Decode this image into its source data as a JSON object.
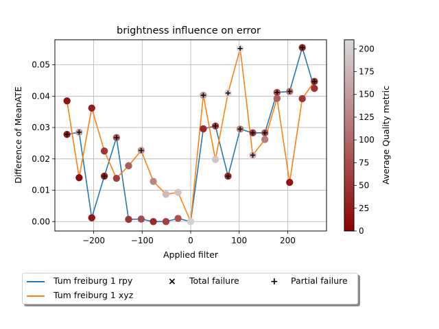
{
  "chart_data": {
    "type": "line",
    "title": "brightness influence on error",
    "xlabel": "Applied filter",
    "ylabel": "Difference of MeanATE",
    "xlim": [
      -280,
      280
    ],
    "ylim": [
      -0.003,
      0.058
    ],
    "x_ticks": [
      -200,
      -100,
      0,
      100,
      200
    ],
    "x_tick_labels": [
      "−200",
      "−100",
      "0",
      "100",
      "200"
    ],
    "y_ticks": [
      0.0,
      0.01,
      0.02,
      0.03,
      0.04,
      0.05
    ],
    "y_tick_labels": [
      "0.00",
      "0.01",
      "0.02",
      "0.03",
      "0.04",
      "0.05"
    ],
    "grid": true,
    "legend_position": "below",
    "series": [
      {
        "name": "Tum freiburg 1 rpy",
        "color": "#1f77b4",
        "x": [
          -255,
          -230,
          -204,
          -178,
          -153,
          -128,
          -102,
          -77,
          -51,
          -26,
          0,
          26,
          51,
          77,
          102,
          128,
          153,
          178,
          204,
          230,
          255
        ],
        "y": [
          0.0278,
          0.0285,
          0.0012,
          0.0145,
          0.0268,
          0.0007,
          0.0008,
          0.0,
          0.0,
          0.001,
          0.0,
          0.0296,
          0.0305,
          0.0145,
          0.0295,
          0.0283,
          0.0283,
          0.0412,
          0.0415,
          0.0555,
          0.0425
        ],
        "quality": [
          30,
          150,
          20,
          30,
          90,
          50,
          70,
          40,
          60,
          80,
          200,
          40,
          60,
          40,
          120,
          60,
          80,
          80,
          110,
          40,
          50
        ]
      },
      {
        "name": "Tum freiburg 1 xyz",
        "color": "#ff7f0e",
        "x": [
          -255,
          -230,
          -204,
          -178,
          -153,
          -128,
          -102,
          -77,
          -51,
          -26,
          0,
          26,
          51,
          77,
          102,
          128,
          153,
          178,
          204,
          230,
          255
        ],
        "y": [
          0.0385,
          0.014,
          0.0362,
          0.0225,
          0.0138,
          0.0178,
          0.0227,
          0.0128,
          0.0087,
          0.0093,
          0.0,
          0.0403,
          0.0198,
          0.041,
          0.0552,
          0.0212,
          0.0262,
          0.0393,
          0.0125,
          0.0392,
          0.0447
        ],
        "quality": [
          20,
          10,
          30,
          50,
          60,
          90,
          140,
          130,
          180,
          190,
          200,
          150,
          190,
          200,
          210,
          170,
          120,
          90,
          20,
          50,
          40
        ]
      }
    ],
    "total_failure_points": [],
    "partial_failure_points": [
      {
        "x": -255,
        "y": 0.0278
      },
      {
        "x": -230,
        "y": 0.0285
      },
      {
        "x": -178,
        "y": 0.0145
      },
      {
        "x": -153,
        "y": 0.0268
      },
      {
        "x": -102,
        "y": 0.0227
      },
      {
        "x": 26,
        "y": 0.0403
      },
      {
        "x": 51,
        "y": 0.0305
      },
      {
        "x": 77,
        "y": 0.041
      },
      {
        "x": 77,
        "y": 0.0145
      },
      {
        "x": 102,
        "y": 0.0552
      },
      {
        "x": 102,
        "y": 0.0295
      },
      {
        "x": 128,
        "y": 0.0212
      },
      {
        "x": 128,
        "y": 0.0283
      },
      {
        "x": 153,
        "y": 0.0283
      },
      {
        "x": 178,
        "y": 0.0412
      },
      {
        "x": 204,
        "y": 0.0415
      },
      {
        "x": 230,
        "y": 0.0555
      },
      {
        "x": 255,
        "y": 0.0447
      }
    ],
    "colorbar": {
      "label": "Average Quality metric",
      "min": 0,
      "max": 210,
      "ticks": [
        0,
        25,
        50,
        75,
        100,
        125,
        150,
        175,
        200
      ],
      "colors": [
        "#8b0000",
        "#d9d9d9"
      ]
    },
    "legend": [
      {
        "label": "Tum freiburg 1 rpy",
        "marker": "line",
        "color": "#1f77b4"
      },
      {
        "label": "Tum freiburg 1 xyz",
        "marker": "line",
        "color": "#ff7f0e"
      },
      {
        "label": "Total failure",
        "marker": "×",
        "color": "#000000"
      },
      {
        "label": "Partial failure",
        "marker": "+",
        "color": "#000000"
      }
    ]
  }
}
